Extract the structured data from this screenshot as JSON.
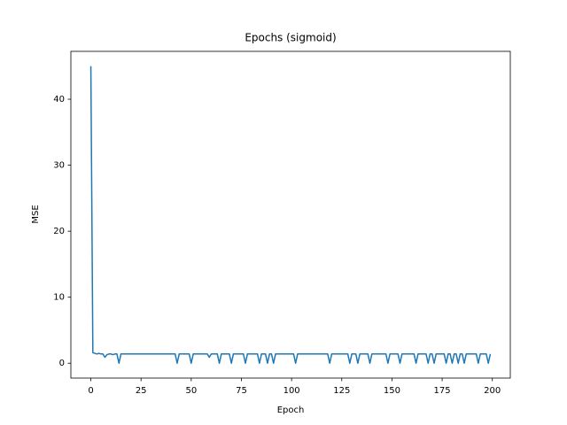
{
  "chart_data": {
    "type": "line",
    "title": "Epochs (sigmoid)",
    "x_label": "Epoch",
    "y_label": "MSE",
    "color": "#1f77b4",
    "x": [
      0,
      1,
      2,
      3,
      4,
      5,
      6,
      7,
      8,
      9,
      10,
      11,
      12,
      13,
      14,
      15,
      16,
      17,
      18,
      19,
      20,
      21,
      22,
      23,
      24,
      25,
      26,
      27,
      28,
      29,
      30,
      31,
      32,
      33,
      34,
      35,
      36,
      37,
      38,
      39,
      40,
      41,
      42,
      43,
      44,
      45,
      46,
      47,
      48,
      49,
      50,
      51,
      52,
      53,
      54,
      55,
      56,
      57,
      58,
      59,
      60,
      61,
      62,
      63,
      64,
      65,
      66,
      67,
      68,
      69,
      70,
      71,
      72,
      73,
      74,
      75,
      76,
      77,
      78,
      79,
      80,
      81,
      82,
      83,
      84,
      85,
      86,
      87,
      88,
      89,
      90,
      91,
      92,
      93,
      94,
      95,
      96,
      97,
      98,
      99,
      100,
      101,
      102,
      103,
      104,
      105,
      106,
      107,
      108,
      109,
      110,
      111,
      112,
      113,
      114,
      115,
      116,
      117,
      118,
      119,
      120,
      121,
      122,
      123,
      124,
      125,
      126,
      127,
      128,
      129,
      130,
      131,
      132,
      133,
      134,
      135,
      136,
      137,
      138,
      139,
      140,
      141,
      142,
      143,
      144,
      145,
      146,
      147,
      148,
      149,
      150,
      151,
      152,
      153,
      154,
      155,
      156,
      157,
      158,
      159,
      160,
      161,
      162,
      163,
      164,
      165,
      166,
      167,
      168,
      169,
      170,
      171,
      172,
      173,
      174,
      175,
      176,
      177,
      178,
      179,
      180,
      181,
      182,
      183,
      184,
      185,
      186,
      187,
      188,
      189,
      190,
      191,
      192,
      193,
      194,
      195,
      196,
      197,
      198,
      199
    ],
    "values": [
      45,
      1.6,
      1.5,
      1.4,
      1.5,
      1.4,
      1.4,
      0.9,
      1.3,
      1.4,
      1.4,
      1.3,
      1.4,
      1.4,
      0,
      1.4,
      1.4,
      1.4,
      1.4,
      1.4,
      1.4,
      1.4,
      1.4,
      1.4,
      1.4,
      1.4,
      1.4,
      1.4,
      1.4,
      1.4,
      1.4,
      1.4,
      1.4,
      1.4,
      1.4,
      1.4,
      1.4,
      1.4,
      1.4,
      1.4,
      1.4,
      1.4,
      1.4,
      0,
      1.4,
      1.4,
      1.4,
      1.4,
      1.4,
      1.4,
      0,
      1.4,
      1.4,
      1.4,
      1.4,
      1.4,
      1.4,
      1.4,
      1.4,
      0.9,
      1.4,
      1.4,
      1.4,
      1.4,
      0,
      1.4,
      1.4,
      1.4,
      1.4,
      1.4,
      0,
      1.4,
      1.4,
      1.4,
      1.4,
      1.4,
      1.4,
      0,
      1.4,
      1.4,
      1.4,
      1.4,
      1.4,
      1.4,
      0,
      1.4,
      1.4,
      1.4,
      0,
      1.4,
      1.4,
      0,
      1.4,
      1.4,
      1.4,
      1.4,
      1.4,
      1.4,
      1.4,
      1.4,
      1.4,
      1.4,
      0,
      1.4,
      1.4,
      1.4,
      1.4,
      1.4,
      1.4,
      1.4,
      1.4,
      1.4,
      1.4,
      1.4,
      1.4,
      1.4,
      1.4,
      1.4,
      1.4,
      0,
      1.4,
      1.4,
      1.4,
      1.4,
      1.4,
      1.4,
      1.4,
      1.4,
      1.4,
      0,
      1.4,
      1.4,
      1.4,
      0,
      1.4,
      1.4,
      1.4,
      1.4,
      1.4,
      0,
      1.4,
      1.4,
      1.4,
      1.4,
      1.4,
      1.4,
      1.4,
      1.4,
      0,
      1.4,
      1.4,
      1.4,
      1.4,
      1.4,
      0,
      1.4,
      1.4,
      1.4,
      1.4,
      1.4,
      1.4,
      1.4,
      0,
      1.4,
      1.4,
      1.4,
      1.4,
      1.4,
      0,
      1.4,
      1.4,
      0,
      1.4,
      1.4,
      1.4,
      1.4,
      1.4,
      0,
      1.4,
      1.4,
      0,
      1.4,
      1.4,
      0,
      1.4,
      1.4,
      0,
      1.4,
      1.4,
      1.4,
      1.4,
      1.4,
      1.4,
      0,
      1.4,
      1.4,
      1.4,
      1.4,
      0,
      1.4
    ],
    "xlim": [
      -9.95,
      208.95
    ],
    "xticks": [
      0,
      25,
      50,
      75,
      100,
      125,
      150,
      175,
      200
    ],
    "ylim": [
      -2.25,
      47.25
    ],
    "yticks": [
      0,
      10,
      20,
      30,
      40
    ],
    "grid": false
  }
}
